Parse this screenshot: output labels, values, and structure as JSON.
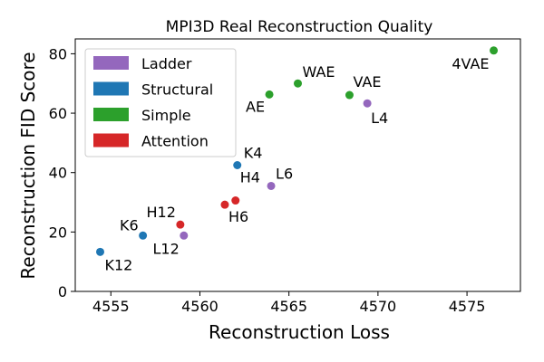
{
  "chart_data": {
    "type": "scatter",
    "title": "MPI3D Real Reconstruction Quality",
    "xlabel": "Reconstruction Loss",
    "ylabel": "Reconstruction FID Score",
    "xlim": [
      4553,
      4578
    ],
    "ylim": [
      0,
      85
    ],
    "xticks": [
      4555,
      4560,
      4565,
      4570,
      4575
    ],
    "yticks": [
      0,
      20,
      40,
      60,
      80
    ],
    "grid": false,
    "legend_position": "top-left",
    "legend": [
      {
        "name": "Ladder",
        "color": "#9467bd"
      },
      {
        "name": "Structural",
        "color": "#1f77b4"
      },
      {
        "name": "Simple",
        "color": "#2ca02c"
      },
      {
        "name": "Attention",
        "color": "#d62728"
      }
    ],
    "points": [
      {
        "label": "K12",
        "group": "Structural",
        "x": 4554.4,
        "y": 13.3
      },
      {
        "label": "K6",
        "group": "Structural",
        "x": 4556.8,
        "y": 18.8
      },
      {
        "label": "K4",
        "group": "Structural",
        "x": 4562.1,
        "y": 42.5
      },
      {
        "label": "L12",
        "group": "Ladder",
        "x": 4559.1,
        "y": 18.8
      },
      {
        "label": "L6",
        "group": "Ladder",
        "x": 4564.0,
        "y": 35.5
      },
      {
        "label": "L4",
        "group": "Ladder",
        "x": 4569.4,
        "y": 63.3
      },
      {
        "label": "H12",
        "group": "Attention",
        "x": 4558.9,
        "y": 22.5
      },
      {
        "label": "H6",
        "group": "Attention",
        "x": 4561.4,
        "y": 29.2
      },
      {
        "label": "H4",
        "group": "Attention",
        "x": 4562.0,
        "y": 30.6
      },
      {
        "label": "AE",
        "group": "Simple",
        "x": 4563.9,
        "y": 66.3
      },
      {
        "label": "WAE",
        "group": "Simple",
        "x": 4565.5,
        "y": 70.0
      },
      {
        "label": "VAE",
        "group": "Simple",
        "x": 4568.4,
        "y": 66.1
      },
      {
        "label": "4VAE",
        "group": "Simple",
        "x": 4576.5,
        "y": 81.1
      }
    ]
  }
}
